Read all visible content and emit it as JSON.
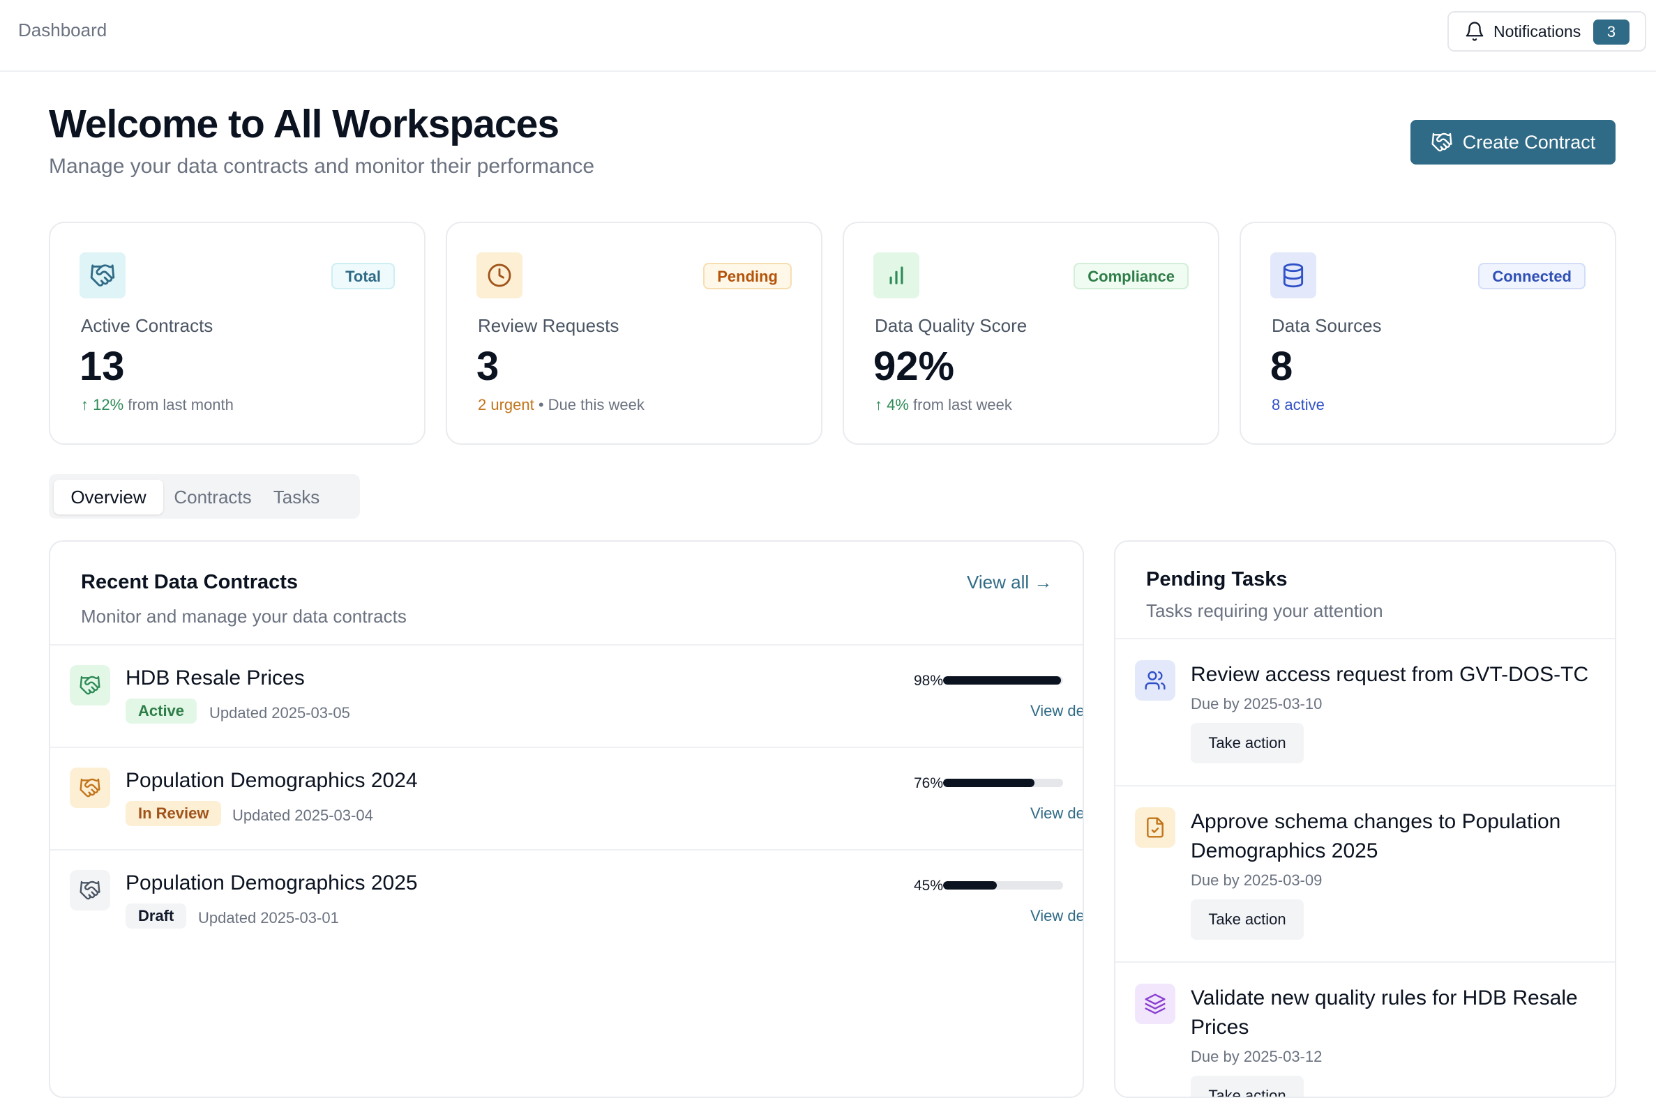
{
  "topbar": {
    "breadcrumb": "Dashboard",
    "notifications_label": "Notifications",
    "notifications_count": "3"
  },
  "header": {
    "title": "Welcome to All Workspaces",
    "subtitle": "Manage your data contracts and monitor their performance",
    "create_button": "Create Contract"
  },
  "stats": [
    {
      "icon": "handshake-icon",
      "badge": "Total",
      "label": "Active Contracts",
      "value": "13",
      "trend_arrow": "↑",
      "trend_value": "12%",
      "trend_rest": " from last month",
      "accent": "#2f6a86",
      "icon_bg": "#dff4f7",
      "badge_bg": "#effafc",
      "badge_border": "#cdeef3",
      "badge_color": "#2f6a86"
    },
    {
      "icon": "clock-icon",
      "badge": "Pending",
      "label": "Review Requests",
      "value": "3",
      "urgent": "2 urgent",
      "due_rest": " • Due this week",
      "accent": "#a0531a",
      "icon_bg": "#fcefd4",
      "badge_bg": "#fff8e8",
      "badge_border": "#f6deb1",
      "badge_color": "#b45309"
    },
    {
      "icon": "bar-chart-icon",
      "badge": "Compliance",
      "label": "Data Quality Score",
      "value": "92%",
      "trend_arrow": "↑",
      "trend_value": "4%",
      "trend_rest": " from last week",
      "accent": "#2e8b57",
      "icon_bg": "#e3f7e7",
      "badge_bg": "#f0fbf2",
      "badge_border": "#d2efd8",
      "badge_color": "#2e7d47"
    },
    {
      "icon": "database-icon",
      "badge": "Connected",
      "label": "Data Sources",
      "value": "8",
      "active_text": "8 active",
      "accent": "#3050c8",
      "icon_bg": "#e3e9fb",
      "badge_bg": "#f0f4ff",
      "badge_border": "#d3ddf8",
      "badge_color": "#2f4fb5"
    }
  ],
  "tabs": [
    {
      "label": "Overview",
      "active": true
    },
    {
      "label": "Contracts",
      "active": false
    },
    {
      "label": "Tasks",
      "active": false
    }
  ],
  "contracts_panel": {
    "title": "Recent Data Contracts",
    "subtitle": "Monitor and manage your data contracts",
    "view_all": "View all",
    "rows": [
      {
        "name": "HDB Resale Prices",
        "status": "Active",
        "updated": "Updated 2025-03-05",
        "progress": 98,
        "progress_label": "98%",
        "details": "View details",
        "icon_bg": "#e3f7e7",
        "icon_color": "#2e8b57",
        "status_bg": "#e3f7e7",
        "status_color": "#2e7d47"
      },
      {
        "name": "Population Demographics 2024",
        "status": "In Review",
        "updated": "Updated 2025-03-04",
        "progress": 76,
        "progress_label": "76%",
        "details": "View details",
        "icon_bg": "#fcefd4",
        "icon_color": "#c2741a",
        "status_bg": "#fcefd4",
        "status_color": "#a0531a"
      },
      {
        "name": "Population Demographics 2025",
        "status": "Draft",
        "updated": "Updated 2025-03-01",
        "progress": 45,
        "progress_label": "45%",
        "details": "View details",
        "icon_bg": "#f3f4f6",
        "icon_color": "#4b5563",
        "status_bg": "#f3f4f6",
        "status_color": "#111827"
      }
    ]
  },
  "tasks_panel": {
    "title": "Pending Tasks",
    "subtitle": "Tasks requiring your attention",
    "rows": [
      {
        "icon": "users-icon",
        "title": "Review access request from GVT-DOS-TC",
        "due": "Due by 2025-03-10",
        "action": "Take action",
        "icon_bg": "#e3e9fb",
        "icon_color": "#3050c8"
      },
      {
        "icon": "file-check-icon",
        "title": "Approve schema changes to Population Demographics 2025",
        "due": "Due by 2025-03-09",
        "action": "Take action",
        "icon_bg": "#fcefd4",
        "icon_color": "#c2741a"
      },
      {
        "icon": "layers-icon",
        "title": "Validate new quality rules for HDB Resale Prices",
        "due": "Due by 2025-03-12",
        "action": "Take action",
        "icon_bg": "#f1e6fb",
        "icon_color": "#8b3fd1"
      }
    ]
  }
}
